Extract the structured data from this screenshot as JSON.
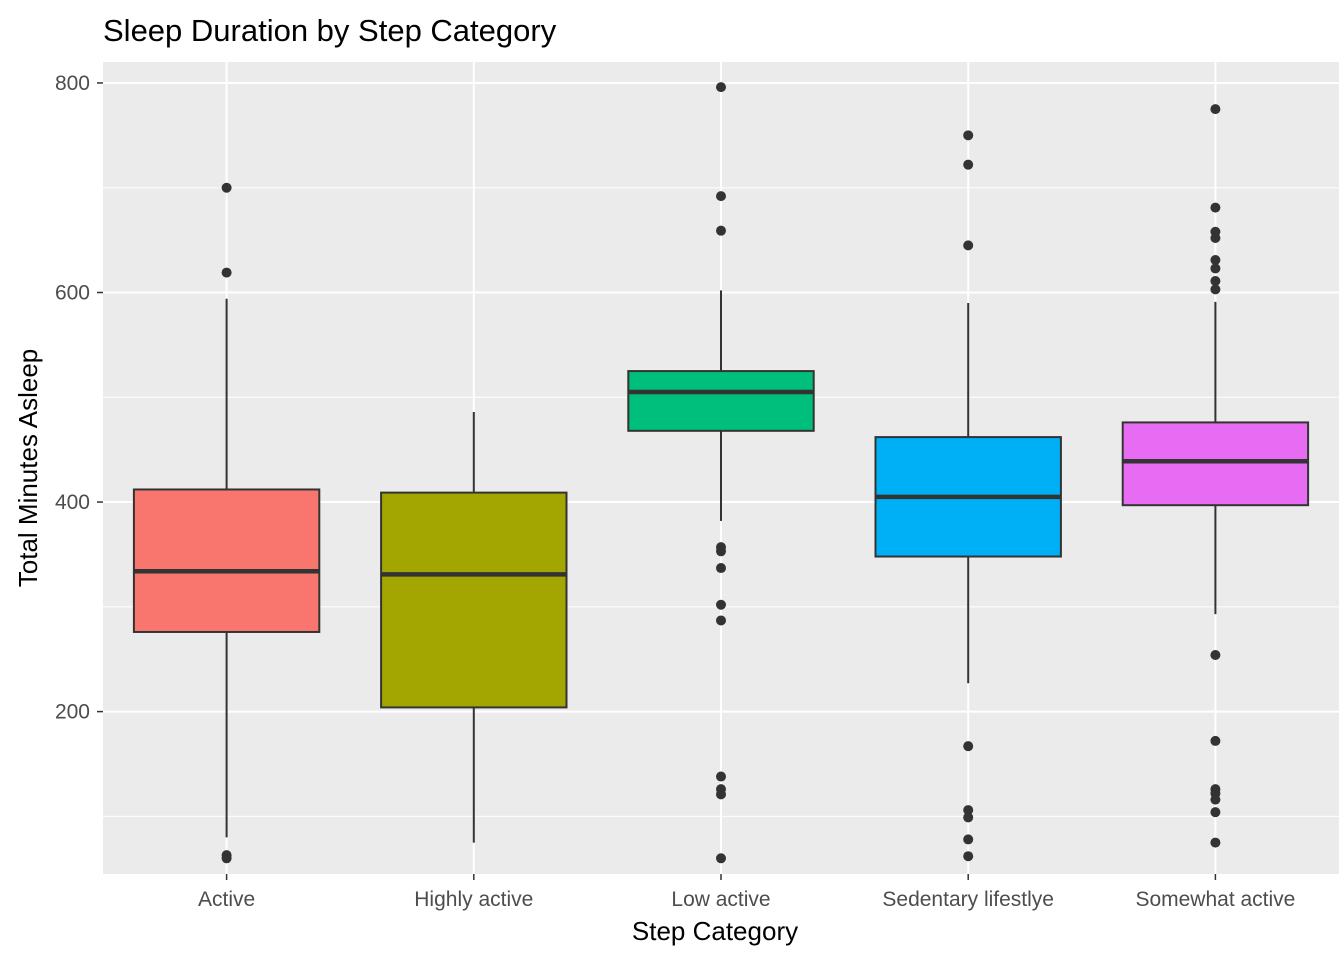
{
  "chart_data": {
    "type": "box",
    "title": "Sleep Duration by Step Category",
    "xlabel": "Step Category",
    "ylabel": "Total Minutes Asleep",
    "ylim": [
      45,
      820
    ],
    "yticks": [
      200,
      400,
      600,
      800
    ],
    "grid": true,
    "legend": "none",
    "categories": [
      "Active",
      "Highly active",
      "Low active",
      "Sedentary lifestlye",
      "Somewhat active"
    ],
    "boxes": [
      {
        "category": "Active",
        "color": "#F8766D",
        "q1": 276,
        "median": 334,
        "q3": 412,
        "whisker_low": 80,
        "whisker_high": 594,
        "outliers": [
          700,
          619,
          63,
          60
        ]
      },
      {
        "category": "Highly active",
        "color": "#A3A500",
        "q1": 204,
        "median": 331,
        "q3": 409,
        "whisker_low": 75,
        "whisker_high": 486,
        "outliers": []
      },
      {
        "category": "Low active",
        "color": "#00BF7D",
        "q1": 468,
        "median": 505,
        "q3": 525,
        "whisker_low": 382,
        "whisker_high": 602,
        "outliers": [
          796,
          692,
          659,
          357,
          353,
          337,
          302,
          287,
          138,
          126,
          121,
          60
        ]
      },
      {
        "category": "Sedentary lifestlye",
        "color": "#00B0F6",
        "q1": 348,
        "median": 405,
        "q3": 462,
        "whisker_low": 227,
        "whisker_high": 590,
        "outliers": [
          750,
          722,
          645,
          167,
          106,
          99,
          78,
          62
        ]
      },
      {
        "category": "Somewhat active",
        "color": "#E76BF3",
        "q1": 397,
        "median": 439,
        "q3": 476,
        "whisker_low": 293,
        "whisker_high": 591,
        "outliers": [
          775,
          681,
          658,
          652,
          631,
          623,
          611,
          603,
          254,
          172,
          126,
          122,
          116,
          104,
          75
        ]
      }
    ]
  }
}
